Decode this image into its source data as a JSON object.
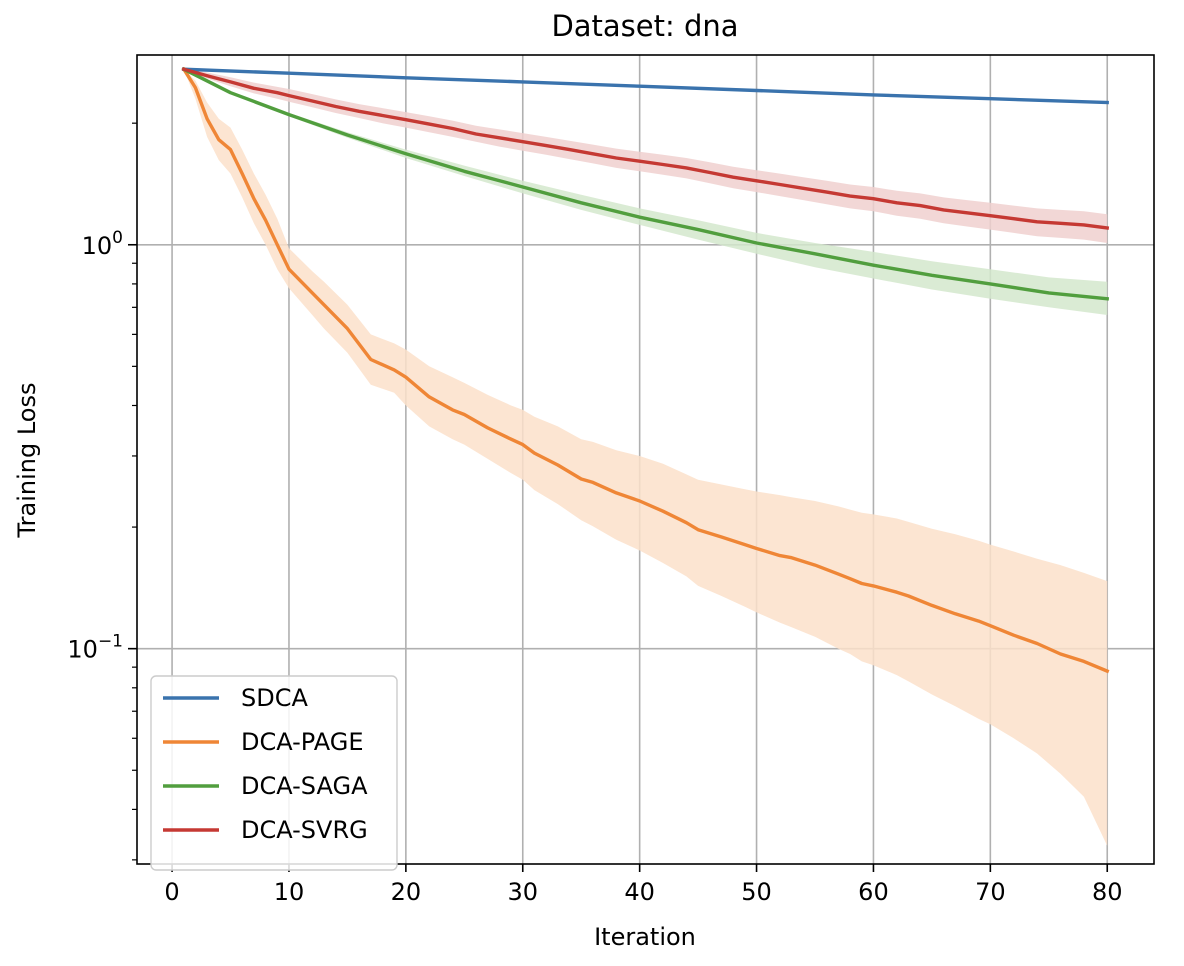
{
  "chart_data": {
    "type": "line",
    "title": "Dataset: dna",
    "xlabel": "Iteration",
    "ylabel": "Training Loss",
    "yscale": "log",
    "xlim": [
      -3,
      84
    ],
    "ylim": [
      0.0293,
      2.95
    ],
    "xticks": [
      0,
      10,
      20,
      30,
      40,
      50,
      60,
      70,
      80
    ],
    "xtick_labels": [
      "0",
      "10",
      "20",
      "30",
      "40",
      "50",
      "60",
      "70",
      "80"
    ],
    "yticks": [
      {
        "value": 1.0,
        "base": "10",
        "exp": "0"
      },
      {
        "value": 0.1,
        "base": "10",
        "exp": "−1"
      }
    ],
    "grid": true,
    "legend_position": "lower-left",
    "series": [
      {
        "name": "SDCA",
        "color": "#3a73ad",
        "x": [
          1,
          10,
          20,
          30,
          40,
          50,
          60,
          70,
          80
        ],
        "values": [
          2.72,
          2.66,
          2.59,
          2.53,
          2.47,
          2.41,
          2.35,
          2.3,
          2.25
        ]
      },
      {
        "name": "DCA-PAGE",
        "color": "#ef8636",
        "band_color": "#fbe1ca",
        "x": [
          1,
          2,
          3,
          4,
          5,
          6,
          7,
          8,
          9,
          10,
          12,
          13,
          15,
          17,
          19,
          20,
          22,
          24,
          25,
          27,
          29,
          30,
          31,
          33,
          35,
          36,
          38,
          40,
          42,
          44,
          45,
          47,
          49,
          50,
          52,
          53,
          55,
          57,
          58,
          59,
          60,
          62,
          63,
          65,
          67,
          69,
          70,
          72,
          74,
          76,
          78,
          80
        ],
        "values": [
          2.72,
          2.45,
          2.05,
          1.82,
          1.72,
          1.5,
          1.3,
          1.15,
          1.0,
          0.87,
          0.76,
          0.71,
          0.62,
          0.52,
          0.49,
          0.47,
          0.42,
          0.39,
          0.38,
          0.352,
          0.33,
          0.32,
          0.305,
          0.285,
          0.263,
          0.258,
          0.243,
          0.232,
          0.219,
          0.205,
          0.197,
          0.189,
          0.181,
          0.177,
          0.17,
          0.168,
          0.161,
          0.153,
          0.149,
          0.145,
          0.143,
          0.138,
          0.135,
          0.128,
          0.122,
          0.117,
          0.114,
          0.108,
          0.103,
          0.097,
          0.093,
          0.088
        ],
        "lower": [
          2.72,
          2.3,
          1.85,
          1.62,
          1.5,
          1.31,
          1.13,
          1.0,
          0.87,
          0.78,
          0.67,
          0.62,
          0.54,
          0.45,
          0.43,
          0.4,
          0.355,
          0.33,
          0.32,
          0.295,
          0.272,
          0.262,
          0.247,
          0.228,
          0.208,
          0.201,
          0.186,
          0.175,
          0.163,
          0.151,
          0.143,
          0.135,
          0.127,
          0.123,
          0.116,
          0.113,
          0.107,
          0.1,
          0.097,
          0.093,
          0.091,
          0.086,
          0.083,
          0.077,
          0.072,
          0.067,
          0.065,
          0.06,
          0.055,
          0.049,
          0.043,
          0.0325
        ],
        "upper": [
          2.72,
          2.55,
          2.25,
          2.05,
          1.95,
          1.72,
          1.5,
          1.33,
          1.16,
          0.98,
          0.86,
          0.81,
          0.71,
          0.6,
          0.57,
          0.55,
          0.5,
          0.47,
          0.455,
          0.425,
          0.4,
          0.39,
          0.375,
          0.355,
          0.33,
          0.325,
          0.31,
          0.3,
          0.287,
          0.27,
          0.262,
          0.255,
          0.248,
          0.245,
          0.24,
          0.237,
          0.232,
          0.225,
          0.221,
          0.217,
          0.215,
          0.21,
          0.206,
          0.198,
          0.192,
          0.185,
          0.181,
          0.174,
          0.167,
          0.161,
          0.154,
          0.147
        ]
      },
      {
        "name": "DCA-SAGA",
        "color": "#519e3e",
        "band_color": "#d3e8cc",
        "x": [
          1,
          5,
          10,
          15,
          20,
          25,
          30,
          35,
          40,
          45,
          50,
          55,
          60,
          65,
          70,
          75,
          80
        ],
        "values": [
          2.72,
          2.38,
          2.1,
          1.87,
          1.68,
          1.52,
          1.39,
          1.27,
          1.17,
          1.09,
          1.01,
          0.95,
          0.89,
          0.84,
          0.8,
          0.76,
          0.735
        ],
        "lower": [
          2.72,
          2.37,
          2.08,
          1.84,
          1.64,
          1.48,
          1.34,
          1.22,
          1.12,
          1.03,
          0.95,
          0.88,
          0.825,
          0.775,
          0.735,
          0.7,
          0.67
        ],
        "upper": [
          2.72,
          2.39,
          2.12,
          1.9,
          1.72,
          1.57,
          1.44,
          1.33,
          1.23,
          1.15,
          1.07,
          1.01,
          0.96,
          0.91,
          0.87,
          0.83,
          0.81
        ]
      },
      {
        "name": "DCA-SVRG",
        "color": "#c53933",
        "band_color": "#f0d0cf",
        "x": [
          1,
          3,
          5,
          7,
          9,
          10,
          12,
          14,
          16,
          18,
          20,
          22,
          24,
          26,
          28,
          30,
          32,
          34,
          36,
          38,
          40,
          42,
          44,
          46,
          48,
          50,
          52,
          54,
          56,
          58,
          60,
          62,
          64,
          66,
          68,
          70,
          72,
          74,
          76,
          78,
          80
        ],
        "values": [
          2.72,
          2.62,
          2.53,
          2.44,
          2.38,
          2.34,
          2.27,
          2.2,
          2.14,
          2.09,
          2.04,
          1.99,
          1.94,
          1.88,
          1.84,
          1.8,
          1.76,
          1.72,
          1.68,
          1.64,
          1.61,
          1.58,
          1.55,
          1.51,
          1.47,
          1.44,
          1.41,
          1.38,
          1.35,
          1.32,
          1.3,
          1.27,
          1.25,
          1.22,
          1.2,
          1.18,
          1.16,
          1.14,
          1.13,
          1.12,
          1.1
        ],
        "lower": [
          2.72,
          2.58,
          2.47,
          2.37,
          2.3,
          2.26,
          2.19,
          2.12,
          2.06,
          2.0,
          1.95,
          1.9,
          1.85,
          1.8,
          1.75,
          1.71,
          1.67,
          1.63,
          1.59,
          1.55,
          1.52,
          1.49,
          1.46,
          1.42,
          1.38,
          1.35,
          1.32,
          1.29,
          1.26,
          1.23,
          1.21,
          1.18,
          1.16,
          1.13,
          1.11,
          1.09,
          1.07,
          1.05,
          1.04,
          1.03,
          1.01
        ],
        "upper": [
          2.72,
          2.67,
          2.6,
          2.52,
          2.46,
          2.43,
          2.36,
          2.29,
          2.23,
          2.18,
          2.13,
          2.08,
          2.03,
          1.97,
          1.93,
          1.89,
          1.85,
          1.81,
          1.77,
          1.73,
          1.7,
          1.67,
          1.64,
          1.6,
          1.56,
          1.53,
          1.5,
          1.47,
          1.44,
          1.41,
          1.39,
          1.36,
          1.34,
          1.31,
          1.29,
          1.27,
          1.25,
          1.23,
          1.22,
          1.21,
          1.19
        ]
      }
    ]
  }
}
